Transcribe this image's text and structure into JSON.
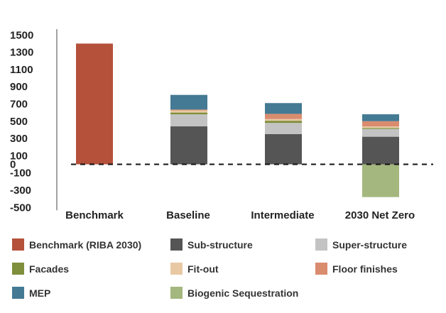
{
  "chart_data": {
    "type": "bar",
    "stacked": true,
    "categories": [
      "Benchmark",
      "Baseline",
      "Intermediate",
      "2030 Net Zero"
    ],
    "yticks": [
      1500,
      1300,
      1100,
      900,
      700,
      500,
      300,
      100,
      0,
      -100,
      -300,
      -500
    ],
    "ylim": [
      -500,
      1600
    ],
    "zero_line": "dashed",
    "series": [
      {
        "name": "Benchmark (RIBA 2030)",
        "color": "#B5503A",
        "values": [
          1400,
          0,
          0,
          0
        ]
      },
      {
        "name": "Sub-structure",
        "color": "#555555",
        "values": [
          0,
          440,
          350,
          320
        ]
      },
      {
        "name": "Super-structure",
        "color": "#C3C3C3",
        "values": [
          0,
          140,
          130,
          90
        ]
      },
      {
        "name": "Facades",
        "color": "#7F8F3C",
        "values": [
          0,
          20,
          25,
          10
        ]
      },
      {
        "name": "Fit-out",
        "color": "#E9C9A4",
        "values": [
          0,
          25,
          20,
          20
        ]
      },
      {
        "name": "Floor finishes",
        "color": "#D98C6E",
        "values": [
          0,
          10,
          60,
          60
        ]
      },
      {
        "name": "MEP",
        "color": "#447A93",
        "values": [
          0,
          170,
          125,
          80
        ]
      },
      {
        "name": "Biogenic Sequestration",
        "color": "#A4B77E",
        "values": [
          0,
          0,
          0,
          -380
        ]
      }
    ]
  }
}
